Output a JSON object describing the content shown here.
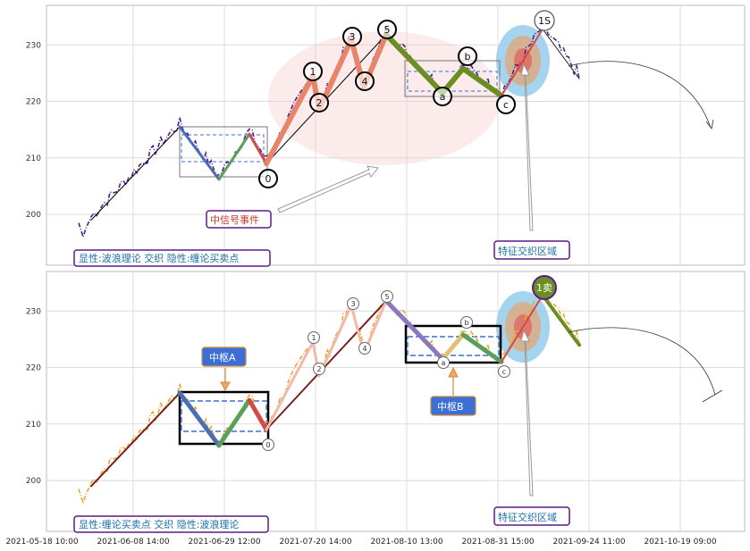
{
  "chart_data": [
    {
      "type": "line",
      "panel": "top",
      "ylim": [
        191,
        237
      ],
      "yticks": [
        200,
        210,
        220,
        230
      ],
      "legend_text": "显性:波浪理论 交织 隐性:缠论买卖点",
      "event_label": "中信号事件",
      "zone_label": "特征交织区域",
      "wave_labels": [
        "0",
        "1",
        "2",
        "3",
        "4",
        "5",
        "a",
        "b",
        "c",
        "1S"
      ],
      "colors": {
        "price": "#4b1f8f",
        "wave_up": "#e8846a",
        "impulse_down": "#4a6fb5",
        "corrective": "#6b8e23",
        "legend_border": "#5b1a8c",
        "legend_text": "#1a6fa8",
        "event_text": "#c0392b"
      }
    },
    {
      "type": "line",
      "panel": "bottom",
      "ylim": [
        191,
        237
      ],
      "yticks": [
        200,
        210,
        220,
        230
      ],
      "legend_text": "显性:缠论买卖点 交织 隐性:波浪理论",
      "zone_label": "特征交织区域",
      "pivot_labels": [
        "中枢A",
        "中枢B"
      ],
      "wave_labels": [
        "0",
        "1",
        "2",
        "3",
        "4",
        "5",
        "a",
        "b",
        "c",
        "1卖"
      ],
      "colors": {
        "price": "#e5a82b",
        "pivot_box": "#000000",
        "pivot_label_bg": "#3c6fd6",
        "sell_badge": "#6b8e23"
      }
    }
  ],
  "x_axis": {
    "ticks": [
      "2021-05-18 10:00",
      "2021-06-08 14:00",
      "2021-06-29 12:00",
      "2021-07-20 14:00",
      "2021-08-10 13:00",
      "2021-08-31 15:00",
      "2021-09-24 11:00",
      "2021-10-19 09:00"
    ]
  }
}
